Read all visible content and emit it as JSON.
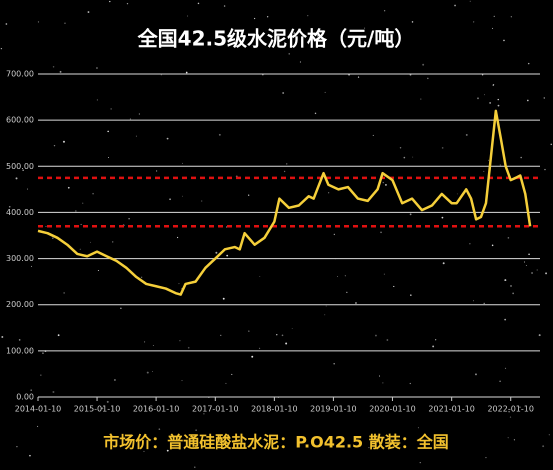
{
  "chart_data": {
    "type": "line",
    "title": "全国42.5级水泥价格（元/吨）",
    "footnote": "市场价：普通硅酸盐水泥：P.O42.5 散装：全国",
    "color": "#f5cf3a",
    "x": [
      "2014-01-10",
      "2014-03-10",
      "2014-05-10",
      "2014-07-10",
      "2014-09-10",
      "2014-11-10",
      "2015-01-10",
      "2015-03-10",
      "2015-05-10",
      "2015-07-10",
      "2015-09-10",
      "2015-11-10",
      "2016-01-10",
      "2016-03-10",
      "2016-05-10",
      "2016-06-10",
      "2016-07-10",
      "2016-09-10",
      "2016-11-10",
      "2017-01-10",
      "2017-03-10",
      "2017-05-10",
      "2017-06-10",
      "2017-07-10",
      "2017-09-10",
      "2017-11-10",
      "2018-01-10",
      "2018-02-10",
      "2018-04-10",
      "2018-06-10",
      "2018-08-10",
      "2018-09-10",
      "2018-11-10",
      "2018-12-10",
      "2019-02-10",
      "2019-04-10",
      "2019-06-10",
      "2019-08-10",
      "2019-10-10",
      "2019-11-10",
      "2020-01-10",
      "2020-03-10",
      "2020-05-10",
      "2020-07-10",
      "2020-09-10",
      "2020-11-10",
      "2021-01-10",
      "2021-02-10",
      "2021-04-10",
      "2021-05-10",
      "2021-06-10",
      "2021-07-10",
      "2021-08-10",
      "2021-10-10",
      "2021-11-10",
      "2021-12-10",
      "2022-01-10",
      "2022-02-10",
      "2022-03-10",
      "2022-04-10",
      "2022-05-10"
    ],
    "values": [
      360,
      355,
      345,
      330,
      310,
      305,
      315,
      305,
      295,
      280,
      260,
      245,
      240,
      235,
      225,
      222,
      245,
      250,
      280,
      300,
      320,
      325,
      320,
      355,
      330,
      345,
      380,
      430,
      410,
      415,
      435,
      430,
      485,
      460,
      450,
      455,
      430,
      425,
      450,
      485,
      470,
      420,
      430,
      405,
      415,
      440,
      420,
      420,
      450,
      430,
      385,
      390,
      420,
      620,
      560,
      500,
      470,
      475,
      480,
      440,
      370
    ],
    "xlim": [
      "2014-01-10",
      "2022-07-10"
    ],
    "xticks": [
      "2014-01-10",
      "2015-01-10",
      "2016-01-10",
      "2017-01-10",
      "2018-01-10",
      "2019-01-10",
      "2020-01-10",
      "2021-01-10",
      "2022-01-10"
    ],
    "ylim": [
      0,
      700
    ],
    "yticks": [
      {
        "value": 0,
        "label": "0.00"
      },
      {
        "value": 100,
        "label": "100.00"
      },
      {
        "value": 200,
        "label": "200.00"
      },
      {
        "value": 300,
        "label": "300.00"
      },
      {
        "value": 400,
        "label": "400.00"
      },
      {
        "value": 500,
        "label": "500.00"
      },
      {
        "value": 600,
        "label": "600.00"
      },
      {
        "value": 700,
        "label": "700.00"
      }
    ],
    "grid": true,
    "reference_lines": [
      {
        "value": 475,
        "color": "#e01010"
      },
      {
        "value": 370,
        "color": "#e01010"
      }
    ]
  }
}
